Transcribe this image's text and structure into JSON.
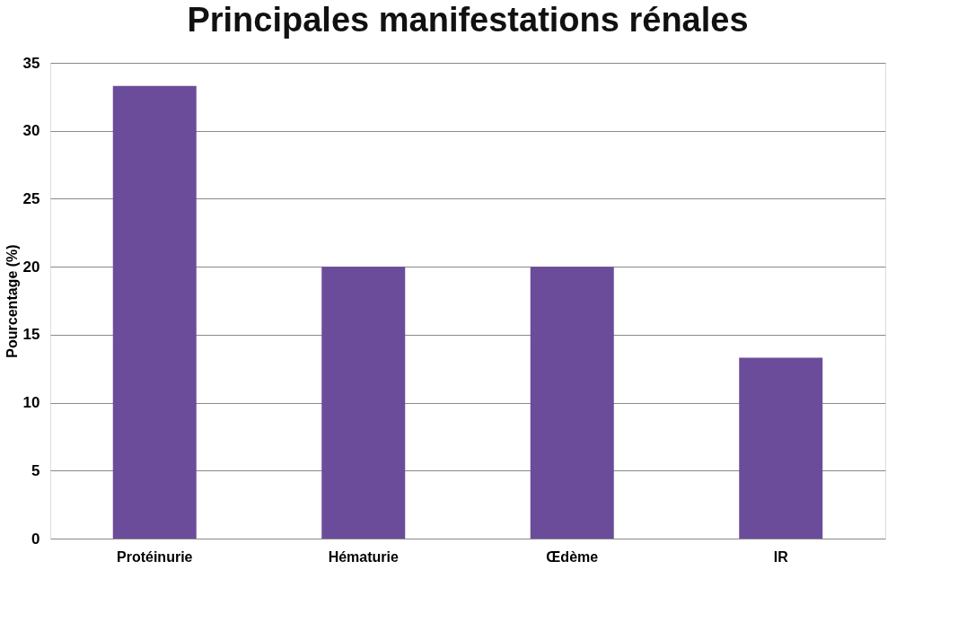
{
  "chart_data": {
    "type": "bar",
    "title": "Principales manifestations rénales",
    "ylabel": "Pourcentage (%)",
    "categories": [
      "Protéinurie",
      "Hématurie",
      "Œdème",
      "IR"
    ],
    "values": [
      33.3,
      20,
      20,
      13.3
    ],
    "color": "#6b4c9a",
    "ylim": [
      0,
      35
    ],
    "yticks": [
      0,
      5,
      10,
      15,
      20,
      25,
      30,
      35
    ],
    "grid": "y"
  }
}
